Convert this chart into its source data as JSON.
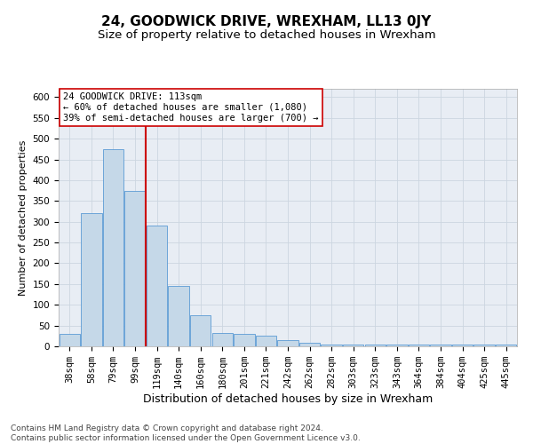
{
  "title": "24, GOODWICK DRIVE, WREXHAM, LL13 0JY",
  "subtitle": "Size of property relative to detached houses in Wrexham",
  "xlabel": "Distribution of detached houses by size in Wrexham",
  "ylabel": "Number of detached properties",
  "categories": [
    "38sqm",
    "58sqm",
    "79sqm",
    "99sqm",
    "119sqm",
    "140sqm",
    "160sqm",
    "180sqm",
    "201sqm",
    "221sqm",
    "242sqm",
    "262sqm",
    "282sqm",
    "303sqm",
    "323sqm",
    "343sqm",
    "364sqm",
    "384sqm",
    "404sqm",
    "425sqm",
    "445sqm"
  ],
  "values": [
    30,
    320,
    475,
    375,
    290,
    145,
    75,
    32,
    30,
    25,
    15,
    8,
    5,
    4,
    4,
    4,
    4,
    4,
    4,
    4,
    5
  ],
  "bar_color": "#c5d8e8",
  "bar_edge_color": "#5b9bd5",
  "vline_x_index": 3.5,
  "vline_color": "#cc0000",
  "annotation_line1": "24 GOODWICK DRIVE: 113sqm",
  "annotation_line2": "← 60% of detached houses are smaller (1,080)",
  "annotation_line3": "39% of semi-detached houses are larger (700) →",
  "annotation_box_color": "#ffffff",
  "annotation_box_edge": "#cc0000",
  "ylim": [
    0,
    620
  ],
  "yticks": [
    0,
    50,
    100,
    150,
    200,
    250,
    300,
    350,
    400,
    450,
    500,
    550,
    600
  ],
  "grid_color": "#ccd6e0",
  "bg_color": "#e8edf4",
  "footer1": "Contains HM Land Registry data © Crown copyright and database right 2024.",
  "footer2": "Contains public sector information licensed under the Open Government Licence v3.0.",
  "title_fontsize": 11,
  "subtitle_fontsize": 9.5,
  "xlabel_fontsize": 9,
  "ylabel_fontsize": 8,
  "tick_fontsize": 7.5,
  "annot_fontsize": 7.5,
  "footer_fontsize": 6.5
}
